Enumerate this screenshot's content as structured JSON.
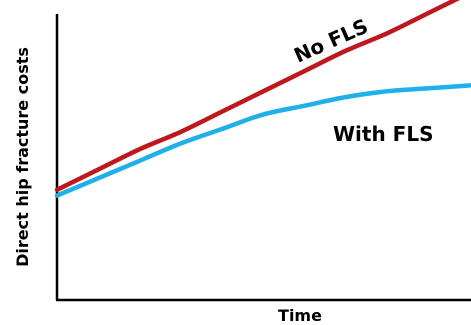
{
  "chart_data": {
    "type": "line",
    "xlabel": "Time",
    "ylabel": "Direct hip fracture costs",
    "grid": false,
    "x": [
      0,
      0.1,
      0.2,
      0.3,
      0.4,
      0.5,
      0.6,
      0.7,
      0.8,
      0.9,
      1.0
    ],
    "series": [
      {
        "name": "No FLS",
        "color": "#c0161c",
        "values": [
          0.38,
          0.45,
          0.52,
          0.58,
          0.65,
          0.72,
          0.79,
          0.86,
          0.92,
          0.99,
          1.06
        ]
      },
      {
        "name": "With FLS",
        "color": "#1fb0ec",
        "values": [
          0.36,
          0.42,
          0.48,
          0.54,
          0.59,
          0.64,
          0.67,
          0.7,
          0.72,
          0.73,
          0.74
        ]
      }
    ]
  }
}
